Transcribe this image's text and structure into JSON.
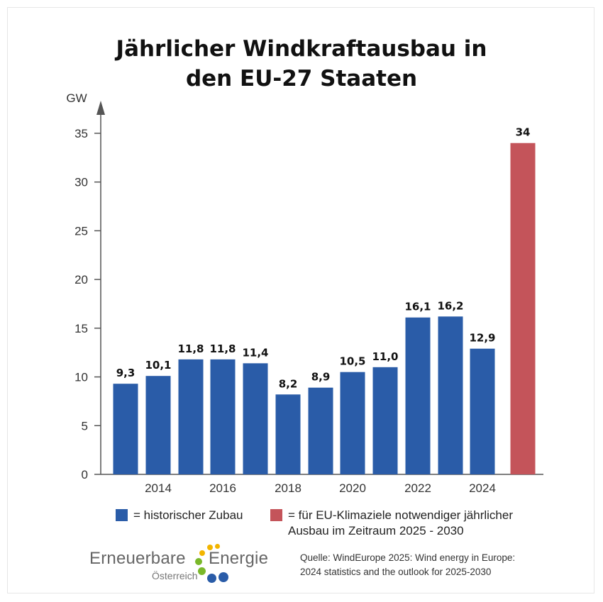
{
  "title_lines": [
    "Jährlicher Windkraftausbau in",
    "den EU-27 Staaten"
  ],
  "chart_data": {
    "type": "bar",
    "ylabel": "GW",
    "ylim": [
      0,
      35
    ],
    "yticks": [
      0,
      5,
      10,
      15,
      20,
      25,
      30,
      35
    ],
    "grid": false,
    "x_tick_labels": [
      "2014",
      "2016",
      "2018",
      "2020",
      "2022",
      "2024"
    ],
    "value_labels": [
      "9,3",
      "10,1",
      "11,8",
      "11,8",
      "11,4",
      "8,2",
      "8,9",
      "10,5",
      "11,0",
      "16,1",
      "16,2",
      "12,9",
      "34"
    ],
    "values": [
      9.3,
      10.1,
      11.8,
      11.8,
      11.4,
      8.2,
      8.9,
      10.5,
      11.0,
      16.1,
      16.2,
      12.9,
      34
    ],
    "bar_kinds": [
      "hist",
      "hist",
      "hist",
      "hist",
      "hist",
      "hist",
      "hist",
      "hist",
      "hist",
      "hist",
      "hist",
      "hist",
      "target"
    ],
    "colors": {
      "hist": "#2a5ca8",
      "target": "#c4545a",
      "axis": "#555555"
    }
  },
  "legend": {
    "historical": "= historischer Zubau",
    "target_lines": [
      "= für EU-Klimaziele notwendiger jährlicher",
      "Ausbau im Zeitraum 2025 - 2030"
    ]
  },
  "source_lines": [
    "Quelle: WindEurope 2025: Wind energy in Europe:",
    "2024 statistics and the outlook for 2025-2030"
  ],
  "logo": {
    "word1": "Erneuerbare",
    "word2": "Energie",
    "word3": "Österreich"
  }
}
